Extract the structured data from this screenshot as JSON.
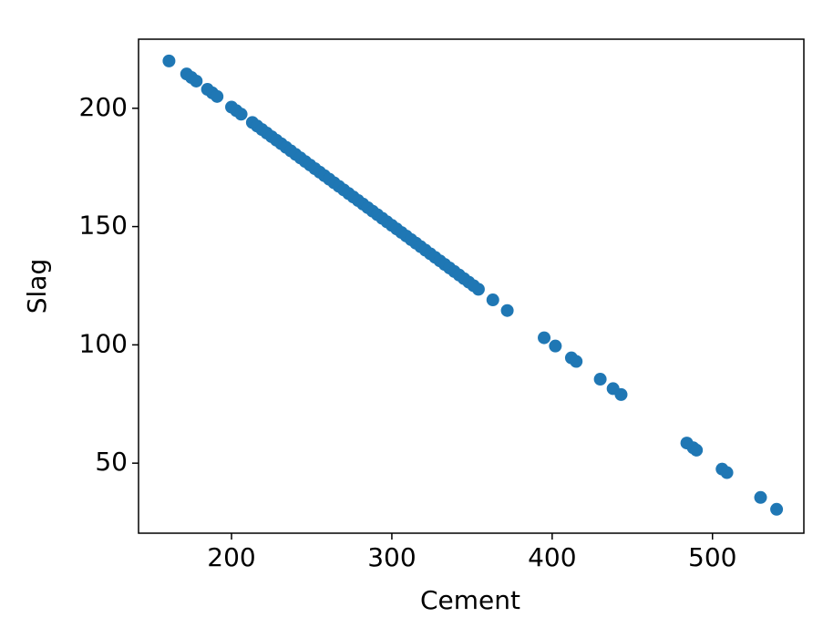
{
  "chart_data": {
    "type": "scatter",
    "x_label": "Cement",
    "y_label": "Slag",
    "color": "#1f77b4",
    "x": [
      161,
      172,
      175,
      178,
      185,
      188,
      191,
      200,
      203,
      206,
      213,
      216,
      219,
      222,
      225,
      228,
      231,
      234,
      237,
      240,
      243,
      246,
      249,
      252,
      255,
      258,
      261,
      264,
      267,
      270,
      273,
      276,
      279,
      282,
      285,
      288,
      291,
      294,
      297,
      300,
      303,
      306,
      309,
      312,
      315,
      318,
      321,
      324,
      327,
      330,
      333,
      336,
      339,
      342,
      345,
      348,
      351,
      354,
      363,
      372,
      395,
      402,
      412,
      415,
      430,
      438,
      443,
      484,
      488,
      490,
      506,
      509,
      530,
      540
    ],
    "values": [
      220,
      214.5,
      213,
      211.5,
      208,
      206.5,
      205,
      200.5,
      199,
      197.5,
      194,
      192.5,
      191,
      189.5,
      188,
      186.5,
      185,
      183.5,
      182,
      180.5,
      179,
      177.5,
      176,
      174.5,
      173,
      171.5,
      170,
      168.5,
      167,
      165.5,
      164,
      162.5,
      161,
      159.5,
      158,
      156.5,
      155,
      153.5,
      152,
      150.5,
      149,
      147.5,
      146,
      144.5,
      143,
      141.5,
      140,
      138.5,
      137,
      135.5,
      134,
      132.5,
      131,
      129.5,
      128,
      126.5,
      125,
      123.5,
      119,
      114.5,
      103,
      99.5,
      94.5,
      93,
      85.5,
      81.5,
      79,
      58.5,
      56.5,
      55.5,
      47.5,
      46,
      35.5,
      30.5
    ],
    "xlim": [
      142,
      557
    ],
    "ylim": [
      20.4,
      229.2
    ],
    "xticks": [
      200,
      300,
      400,
      500
    ],
    "yticks": [
      50,
      100,
      150,
      200
    ]
  }
}
